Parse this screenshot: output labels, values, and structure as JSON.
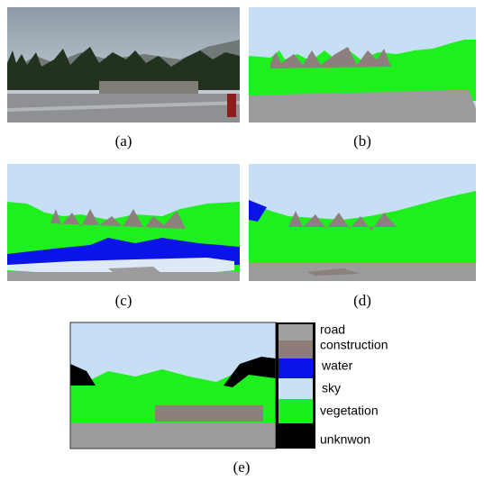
{
  "captions": [
    "(a)",
    "(b)",
    "(c)",
    "(d)",
    "(e)"
  ],
  "legend": [
    "road",
    "construction",
    "water",
    "sky",
    "vegetation",
    "unknwon"
  ]
}
